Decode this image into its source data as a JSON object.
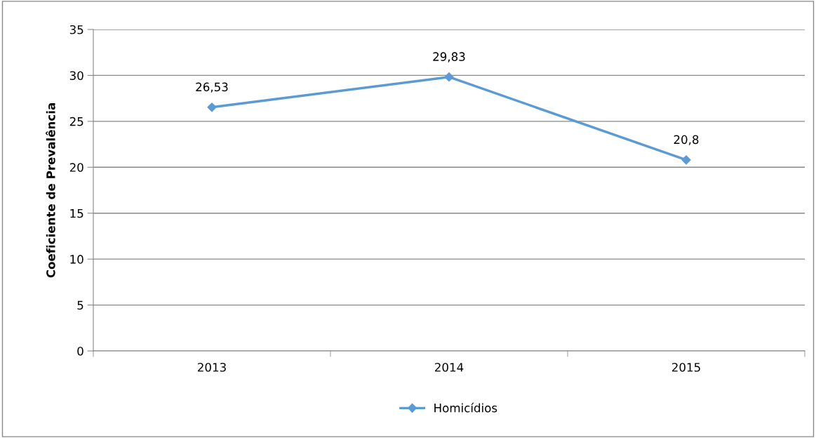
{
  "chart_data": {
    "type": "line",
    "ylabel": "Coeficiente de Prevalência",
    "categories": [
      "2013",
      "2014",
      "2015"
    ],
    "series": [
      {
        "name": "Homicídios",
        "color": "#5b9bd5",
        "values": [
          26.53,
          29.83,
          20.8
        ],
        "value_labels": [
          "26,53",
          "29,83",
          "20,8"
        ]
      }
    ],
    "ylim": [
      0,
      35
    ],
    "yticks": [
      0,
      5,
      10,
      15,
      20,
      25,
      30,
      35
    ],
    "grid": "y",
    "legend": "bottom",
    "marker": "diamond",
    "line_style": "solid"
  }
}
